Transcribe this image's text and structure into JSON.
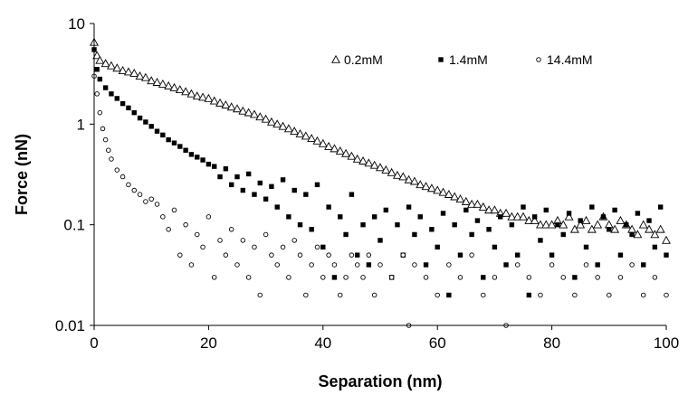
{
  "chart_data": {
    "type": "scatter",
    "xlabel": "Separation (nm)",
    "ylabel": "Force (nN)",
    "xlim": [
      0,
      100
    ],
    "ylim": [
      0.01,
      10
    ],
    "yscale": "log",
    "x_ticks": [
      0,
      20,
      40,
      60,
      80,
      100
    ],
    "x_tick_labels": [
      "0",
      "20",
      "40",
      "60",
      "80",
      "100"
    ],
    "y_ticks": [
      0.01,
      0.1,
      1,
      10
    ],
    "y_tick_labels": [
      "0.01",
      "0.1",
      "1",
      "10"
    ],
    "grid": false,
    "legend_position": "top-right",
    "series": [
      {
        "name": "0.2mM",
        "marker": "open-triangle",
        "x": [
          0,
          0.5,
          1,
          2,
          3,
          4,
          5,
          6,
          7,
          8,
          9,
          10,
          11,
          12,
          13,
          14,
          15,
          16,
          17,
          18,
          19,
          20,
          21,
          22,
          23,
          24,
          25,
          26,
          27,
          28,
          29,
          30,
          31,
          32,
          33,
          34,
          35,
          36,
          37,
          38,
          39,
          40,
          41,
          42,
          43,
          44,
          45,
          46,
          47,
          48,
          49,
          50,
          51,
          52,
          53,
          54,
          55,
          56,
          57,
          58,
          59,
          60,
          61,
          62,
          63,
          64,
          65,
          66,
          67,
          68,
          69,
          70,
          71,
          72,
          73,
          74,
          75,
          76,
          77,
          78,
          79,
          80,
          81,
          82,
          83,
          84,
          85,
          86,
          87,
          88,
          89,
          90,
          91,
          92,
          93,
          94,
          95,
          96,
          97,
          98,
          99,
          100
        ],
        "y": [
          6.5,
          4.8,
          4.3,
          4.0,
          3.8,
          3.6,
          3.4,
          3.3,
          3.2,
          3.0,
          2.9,
          2.7,
          2.6,
          2.5,
          2.4,
          2.3,
          2.2,
          2.1,
          2.0,
          1.9,
          1.85,
          1.8,
          1.7,
          1.62,
          1.55,
          1.48,
          1.42,
          1.35,
          1.3,
          1.25,
          1.18,
          1.12,
          1.05,
          1.0,
          0.95,
          0.9,
          0.85,
          0.8,
          0.76,
          0.72,
          0.68,
          0.64,
          0.6,
          0.57,
          0.54,
          0.51,
          0.48,
          0.45,
          0.43,
          0.41,
          0.39,
          0.37,
          0.35,
          0.33,
          0.31,
          0.3,
          0.28,
          0.27,
          0.25,
          0.24,
          0.23,
          0.22,
          0.21,
          0.2,
          0.19,
          0.18,
          0.17,
          0.16,
          0.16,
          0.15,
          0.14,
          0.14,
          0.13,
          0.13,
          0.12,
          0.12,
          0.12,
          0.11,
          0.11,
          0.1,
          0.1,
          0.1,
          0.11,
          0.1,
          0.12,
          0.09,
          0.1,
          0.11,
          0.09,
          0.1,
          0.12,
          0.1,
          0.09,
          0.11,
          0.1,
          0.09,
          0.08,
          0.1,
          0.09,
          0.08,
          0.09,
          0.07
        ]
      },
      {
        "name": "1.4mM",
        "marker": "filled-square",
        "x": [
          0,
          0.5,
          1,
          2,
          3,
          4,
          5,
          6,
          7,
          8,
          9,
          10,
          11,
          12,
          13,
          14,
          15,
          16,
          17,
          18,
          19,
          20,
          21,
          22,
          23,
          24,
          25,
          26,
          27,
          28,
          29,
          30,
          31,
          32,
          33,
          34,
          35,
          36,
          37,
          38,
          39,
          40,
          41,
          42,
          43,
          44,
          45,
          46,
          47,
          48,
          49,
          50,
          51,
          52,
          53,
          54,
          55,
          56,
          57,
          58,
          59,
          60,
          61,
          62,
          63,
          64,
          65,
          66,
          67,
          68,
          69,
          70,
          71,
          72,
          73,
          74,
          75,
          76,
          77,
          78,
          79,
          80,
          81,
          82,
          83,
          84,
          85,
          86,
          87,
          88,
          89,
          90,
          91,
          92,
          93,
          94,
          95,
          96,
          97,
          98,
          99,
          100
        ],
        "y": [
          5.5,
          3.5,
          2.8,
          2.3,
          2.0,
          1.8,
          1.6,
          1.45,
          1.3,
          1.15,
          1.05,
          0.95,
          0.85,
          0.78,
          0.7,
          0.65,
          0.6,
          0.55,
          0.5,
          0.47,
          0.44,
          0.4,
          0.38,
          0.3,
          0.36,
          0.25,
          0.3,
          0.22,
          0.32,
          0.2,
          0.26,
          0.18,
          0.24,
          0.15,
          0.28,
          0.12,
          0.22,
          0.1,
          0.2,
          0.09,
          0.25,
          0.06,
          0.15,
          0.03,
          0.12,
          0.08,
          0.2,
          0.05,
          0.1,
          0.04,
          0.12,
          0.07,
          0.14,
          0.03,
          0.1,
          0.05,
          0.15,
          0.08,
          0.12,
          0.04,
          0.09,
          0.06,
          0.13,
          0.02,
          0.1,
          0.05,
          0.14,
          0.08,
          0.11,
          0.03,
          0.09,
          0.06,
          0.12,
          0.04,
          0.1,
          0.05,
          0.15,
          0.02,
          0.12,
          0.07,
          0.14,
          0.05,
          0.1,
          0.08,
          0.13,
          0.03,
          0.11,
          0.06,
          0.15,
          0.04,
          0.12,
          0.09,
          0.14,
          0.05,
          0.1,
          0.08,
          0.13,
          0.04,
          0.11,
          0.06,
          0.15,
          0.05
        ]
      },
      {
        "name": "14.4mM",
        "marker": "open-circle",
        "x": [
          0,
          0.5,
          1,
          1.5,
          2,
          2.5,
          3,
          4,
          5,
          6,
          7,
          8,
          9,
          10,
          11,
          12,
          13,
          14,
          15,
          16,
          17,
          18,
          19,
          20,
          21,
          22,
          23,
          24,
          25,
          26,
          27,
          28,
          29,
          30,
          31,
          32,
          33,
          34,
          35,
          36,
          37,
          38,
          39,
          40,
          41,
          42,
          43,
          44,
          45,
          46,
          47,
          48,
          49,
          50,
          52,
          54,
          55,
          56,
          58,
          60,
          62,
          64,
          66,
          68,
          70,
          72,
          74,
          76,
          78,
          80,
          82,
          84,
          86,
          88,
          90,
          92,
          94,
          96,
          98,
          100
        ],
        "y": [
          3.0,
          2.0,
          1.3,
          0.9,
          0.7,
          0.55,
          0.45,
          0.35,
          0.3,
          0.25,
          0.22,
          0.2,
          0.17,
          0.18,
          0.16,
          0.12,
          0.09,
          0.14,
          0.05,
          0.1,
          0.04,
          0.08,
          0.06,
          0.12,
          0.03,
          0.07,
          0.05,
          0.09,
          0.04,
          0.07,
          0.03,
          0.06,
          0.02,
          0.08,
          0.05,
          0.04,
          0.06,
          0.03,
          0.07,
          0.05,
          0.02,
          0.04,
          0.06,
          0.03,
          0.05,
          0.04,
          0.02,
          0.03,
          0.05,
          0.04,
          0.03,
          0.05,
          0.02,
          0.04,
          0.03,
          0.05,
          0.01,
          0.04,
          0.03,
          0.02,
          0.04,
          0.03,
          0.05,
          0.02,
          0.03,
          0.01,
          0.04,
          0.03,
          0.02,
          0.04,
          0.03,
          0.02,
          0.04,
          0.03,
          0.02,
          0.03,
          0.04,
          0.02,
          0.03,
          0.02
        ]
      }
    ]
  }
}
